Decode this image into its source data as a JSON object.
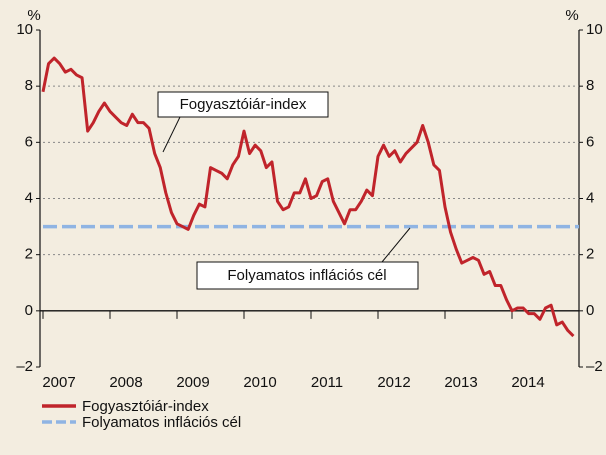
{
  "chart_data": {
    "type": "line",
    "y_unit_left": "%",
    "y_unit_right": "%",
    "xlim": [
      2007,
      2015
    ],
    "xticks": [
      2007,
      2008,
      2009,
      2010,
      2011,
      2012,
      2013,
      2014
    ],
    "ylim": [
      -2,
      10
    ],
    "yticks": [
      {
        "value": -2,
        "label": "–2"
      },
      0,
      2,
      4,
      6,
      8,
      10
    ],
    "y2lim": [
      -2,
      10
    ],
    "y2ticks": [
      {
        "value": -2,
        "label": "–2"
      },
      0,
      2,
      4,
      6,
      8,
      10
    ],
    "grid": true,
    "legend": "bottom-left",
    "annotations": [
      "Fogyasztóiár-index",
      "Folyamatos inflációs cél"
    ],
    "series": [
      {
        "name": "Fogyasztóiár-index",
        "color": "#c0242b",
        "style": "solid",
        "x": [
          2007,
          2007.083,
          2007.167,
          2007.25,
          2007.333,
          2007.417,
          2007.5,
          2007.583,
          2007.667,
          2007.75,
          2007.833,
          2007.917,
          2008,
          2008.083,
          2008.167,
          2008.25,
          2008.333,
          2008.417,
          2008.5,
          2008.583,
          2008.667,
          2008.75,
          2008.833,
          2008.917,
          2009,
          2009.083,
          2009.167,
          2009.25,
          2009.333,
          2009.417,
          2009.5,
          2009.583,
          2009.667,
          2009.75,
          2009.833,
          2009.917,
          2010,
          2010.083,
          2010.167,
          2010.25,
          2010.333,
          2010.417,
          2010.5,
          2010.583,
          2010.667,
          2010.75,
          2010.833,
          2010.917,
          2011,
          2011.083,
          2011.167,
          2011.25,
          2011.333,
          2011.417,
          2011.5,
          2011.583,
          2011.667,
          2011.75,
          2011.833,
          2011.917,
          2012,
          2012.083,
          2012.167,
          2012.25,
          2012.333,
          2012.417,
          2012.5,
          2012.583,
          2012.667,
          2012.75,
          2012.833,
          2012.917,
          2013,
          2013.083,
          2013.167,
          2013.25,
          2013.333,
          2013.417,
          2013.5,
          2013.583,
          2013.667,
          2013.75,
          2013.833,
          2013.917,
          2014,
          2014.083,
          2014.167,
          2014.25,
          2014.333,
          2014.417,
          2014.5,
          2014.583,
          2014.667,
          2014.75,
          2014.833,
          2014.917
        ],
        "values": [
          7.8,
          8.8,
          9.0,
          8.8,
          8.5,
          8.6,
          8.4,
          8.3,
          6.4,
          6.7,
          7.1,
          7.4,
          7.1,
          6.9,
          6.7,
          6.6,
          7.0,
          6.7,
          6.7,
          6.5,
          5.6,
          5.1,
          4.2,
          3.5,
          3.1,
          3.0,
          2.9,
          3.4,
          3.8,
          3.7,
          5.1,
          5.0,
          4.9,
          4.7,
          5.2,
          5.5,
          6.4,
          5.6,
          5.9,
          5.7,
          5.1,
          5.3,
          3.9,
          3.6,
          3.7,
          4.2,
          4.2,
          4.7,
          4.0,
          4.1,
          4.6,
          4.7,
          3.9,
          3.5,
          3.1,
          3.6,
          3.6,
          3.9,
          4.3,
          4.1,
          5.5,
          5.9,
          5.5,
          5.7,
          5.3,
          5.6,
          5.8,
          6.0,
          6.6,
          6.0,
          5.2,
          5.0,
          3.7,
          2.8,
          2.2,
          1.7,
          1.8,
          1.9,
          1.8,
          1.3,
          1.4,
          0.9,
          0.9,
          0.4,
          0.0,
          0.1,
          0.1,
          -0.1,
          -0.1,
          -0.3,
          0.1,
          0.2,
          -0.5,
          -0.4,
          -0.7,
          -0.9
        ]
      },
      {
        "name": "Folyamatos inflációs cél",
        "color": "#8fb4e3",
        "style": "dashed",
        "x": [
          2007,
          2015
        ],
        "values": [
          3,
          3
        ]
      }
    ]
  }
}
